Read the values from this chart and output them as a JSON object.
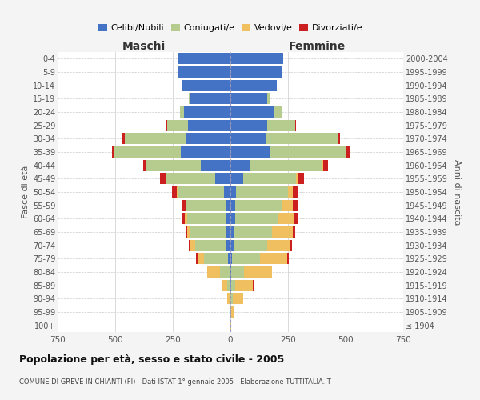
{
  "age_groups": [
    "100+",
    "95-99",
    "90-94",
    "85-89",
    "80-84",
    "75-79",
    "70-74",
    "65-69",
    "60-64",
    "55-59",
    "50-54",
    "45-49",
    "40-44",
    "35-39",
    "30-34",
    "25-29",
    "20-24",
    "15-19",
    "10-14",
    "5-9",
    "0-4"
  ],
  "birth_years": [
    "≤ 1904",
    "1905-1909",
    "1910-1914",
    "1915-1919",
    "1920-1924",
    "1925-1929",
    "1930-1934",
    "1935-1939",
    "1940-1944",
    "1945-1949",
    "1950-1954",
    "1955-1959",
    "1960-1964",
    "1965-1969",
    "1970-1974",
    "1975-1979",
    "1980-1984",
    "1985-1989",
    "1990-1994",
    "1995-1999",
    "2000-2004"
  ],
  "colors": {
    "celibe": "#4472c4",
    "coniugato": "#b5cc8e",
    "vedovo": "#f0c060",
    "divorziato": "#cc2020"
  },
  "maschi": {
    "celibe": [
      0,
      0,
      1,
      3,
      5,
      9,
      18,
      18,
      22,
      20,
      28,
      65,
      130,
      215,
      190,
      185,
      200,
      175,
      210,
      230,
      230
    ],
    "coniugato": [
      0,
      1,
      4,
      10,
      40,
      105,
      135,
      155,
      165,
      170,
      200,
      215,
      235,
      290,
      270,
      90,
      20,
      5,
      0,
      0,
      0
    ],
    "vedovo": [
      0,
      2,
      10,
      20,
      55,
      30,
      20,
      15,
      10,
      5,
      5,
      2,
      2,
      2,
      0,
      0,
      0,
      0,
      0,
      0,
      0
    ],
    "divorziato": [
      0,
      0,
      0,
      2,
      2,
      5,
      8,
      8,
      12,
      18,
      22,
      22,
      12,
      8,
      8,
      3,
      0,
      0,
      0,
      0,
      0
    ]
  },
  "femmine": {
    "nubile": [
      0,
      0,
      1,
      2,
      5,
      8,
      15,
      15,
      20,
      20,
      25,
      55,
      85,
      175,
      155,
      160,
      190,
      160,
      200,
      225,
      230
    ],
    "coniugata": [
      0,
      2,
      8,
      20,
      55,
      120,
      145,
      165,
      185,
      205,
      225,
      230,
      310,
      325,
      310,
      120,
      35,
      10,
      0,
      0,
      0
    ],
    "vedova": [
      2,
      15,
      45,
      75,
      120,
      120,
      100,
      90,
      70,
      45,
      20,
      10,
      8,
      5,
      2,
      2,
      0,
      0,
      0,
      0,
      0
    ],
    "divorziata": [
      0,
      0,
      0,
      2,
      2,
      5,
      8,
      10,
      15,
      22,
      25,
      25,
      20,
      15,
      8,
      3,
      0,
      0,
      0,
      0,
      0
    ]
  },
  "xlim": 750,
  "title": "Popolazione per età, sesso e stato civile - 2005",
  "subtitle": "COMUNE DI GREVE IN CHIANTI (FI) - Dati ISTAT 1° gennaio 2005 - Elaborazione TUTTITALIA.IT",
  "ylabel_left": "Fasce di età",
  "ylabel_right": "Anni di nascita",
  "xlabel_left": "Maschi",
  "xlabel_right": "Femmine",
  "bg_color": "#f4f4f4",
  "plot_bg": "#ffffff",
  "legend_labels": [
    "Celibi/Nubili",
    "Coniugati/e",
    "Vedovi/e",
    "Divorziati/e"
  ]
}
